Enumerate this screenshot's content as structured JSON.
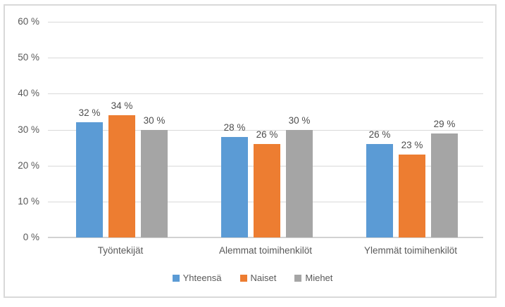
{
  "chart_data": {
    "type": "bar",
    "title": "",
    "categories": [
      "Työntekijät",
      "Alemmat toimihenkilöt",
      "Ylemmät toimihenkilöt"
    ],
    "series": [
      {
        "name": "Yhteensä",
        "color": "#5B9BD5",
        "values": [
          32,
          28,
          26
        ],
        "labels": [
          "32 %",
          "28 %",
          "26 %"
        ]
      },
      {
        "name": "Naiset",
        "color": "#ED7D31",
        "values": [
          34,
          26,
          23
        ],
        "labels": [
          "34 %",
          "26 %",
          "23 %"
        ]
      },
      {
        "name": "Miehet",
        "color": "#A5A5A5",
        "values": [
          30,
          30,
          29
        ],
        "labels": [
          "30 %",
          "30 %",
          "29 %"
        ]
      }
    ],
    "ylim": [
      0,
      60
    ],
    "yticks": [
      {
        "value": 0,
        "label": "0 %"
      },
      {
        "value": 10,
        "label": "10 %"
      },
      {
        "value": 20,
        "label": "20 %"
      },
      {
        "value": 30,
        "label": "30 %"
      },
      {
        "value": 40,
        "label": "40 %"
      },
      {
        "value": 50,
        "label": "50 %"
      },
      {
        "value": 60,
        "label": "60 %"
      }
    ],
    "grid": true,
    "legend_position": "bottom",
    "xlabel": "",
    "ylabel": ""
  },
  "styles": {
    "frame_border_color": "#D9D9D9",
    "gridline_color": "#D9D9D9",
    "axis_line_color": "#D2D2D2",
    "text_color": "#595959",
    "background": "#FFFFFF"
  }
}
